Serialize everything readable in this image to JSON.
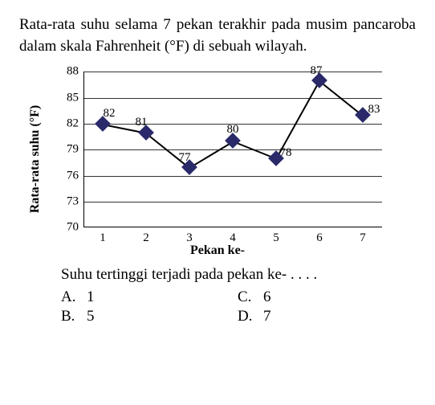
{
  "question": "Rata-rata suhu selama 7 pekan terakhir pada musim pancaroba dalam skala Fahrenheit (°F) di sebuah wilayah.",
  "chart": {
    "type": "line",
    "y_label": "Rata-rata suhu (°F)",
    "x_label": "Pekan ke-",
    "y_ticks": [
      70,
      73,
      76,
      79,
      82,
      85,
      88
    ],
    "ylim": [
      70,
      88
    ],
    "x_ticks": [
      1,
      2,
      3,
      4,
      5,
      6,
      7
    ],
    "xlim": [
      1,
      7
    ],
    "values": [
      82,
      81,
      77,
      80,
      78,
      87,
      83
    ],
    "data_labels": [
      "82",
      "81",
      "77",
      "80",
      "78",
      "87",
      "83"
    ],
    "marker_style": "diamond",
    "marker_color": "#2a2a6a",
    "line_color": "#000000",
    "grid_color": "#333333",
    "background_color": "#ffffff",
    "label_fontsize": 15,
    "axis_label_fontsize": 16
  },
  "followup": "Suhu tertinggi terjadi pada pekan ke- . . . .",
  "options": {
    "A": "1",
    "B": "5",
    "C": "6",
    "D": "7"
  }
}
